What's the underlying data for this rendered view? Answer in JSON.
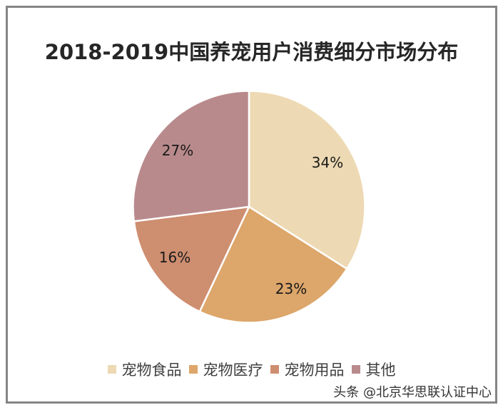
{
  "chart_data": {
    "type": "pie",
    "title": "2018-2019中国养宠用户消费细分市场分布",
    "categories": [
      "宠物食品",
      "宠物医疗",
      "宠物用品",
      "其他"
    ],
    "values": [
      34,
      23,
      16,
      27
    ],
    "labels": [
      "34%",
      "23%",
      "16%",
      "27%"
    ],
    "colors": [
      "#EDD9B3",
      "#DDA66A",
      "#CE8E70",
      "#B98A8C"
    ],
    "start_angle": "12 o'clock",
    "direction": "clockwise",
    "legend_position": "bottom"
  },
  "title": "2018-2019中国养宠用户消费细分市场分布",
  "legend": [
    {
      "label": "宠物食品",
      "color": "#EDD9B3"
    },
    {
      "label": "宠物医疗",
      "color": "#DDA66A"
    },
    {
      "label": "宠物用品",
      "color": "#CE8E70"
    },
    {
      "label": "其他",
      "color": "#B98A8C"
    }
  ],
  "slice_labels": [
    "34%",
    "23%",
    "16%",
    "27%"
  ],
  "watermark": "头条 @北京华思联认证中心"
}
